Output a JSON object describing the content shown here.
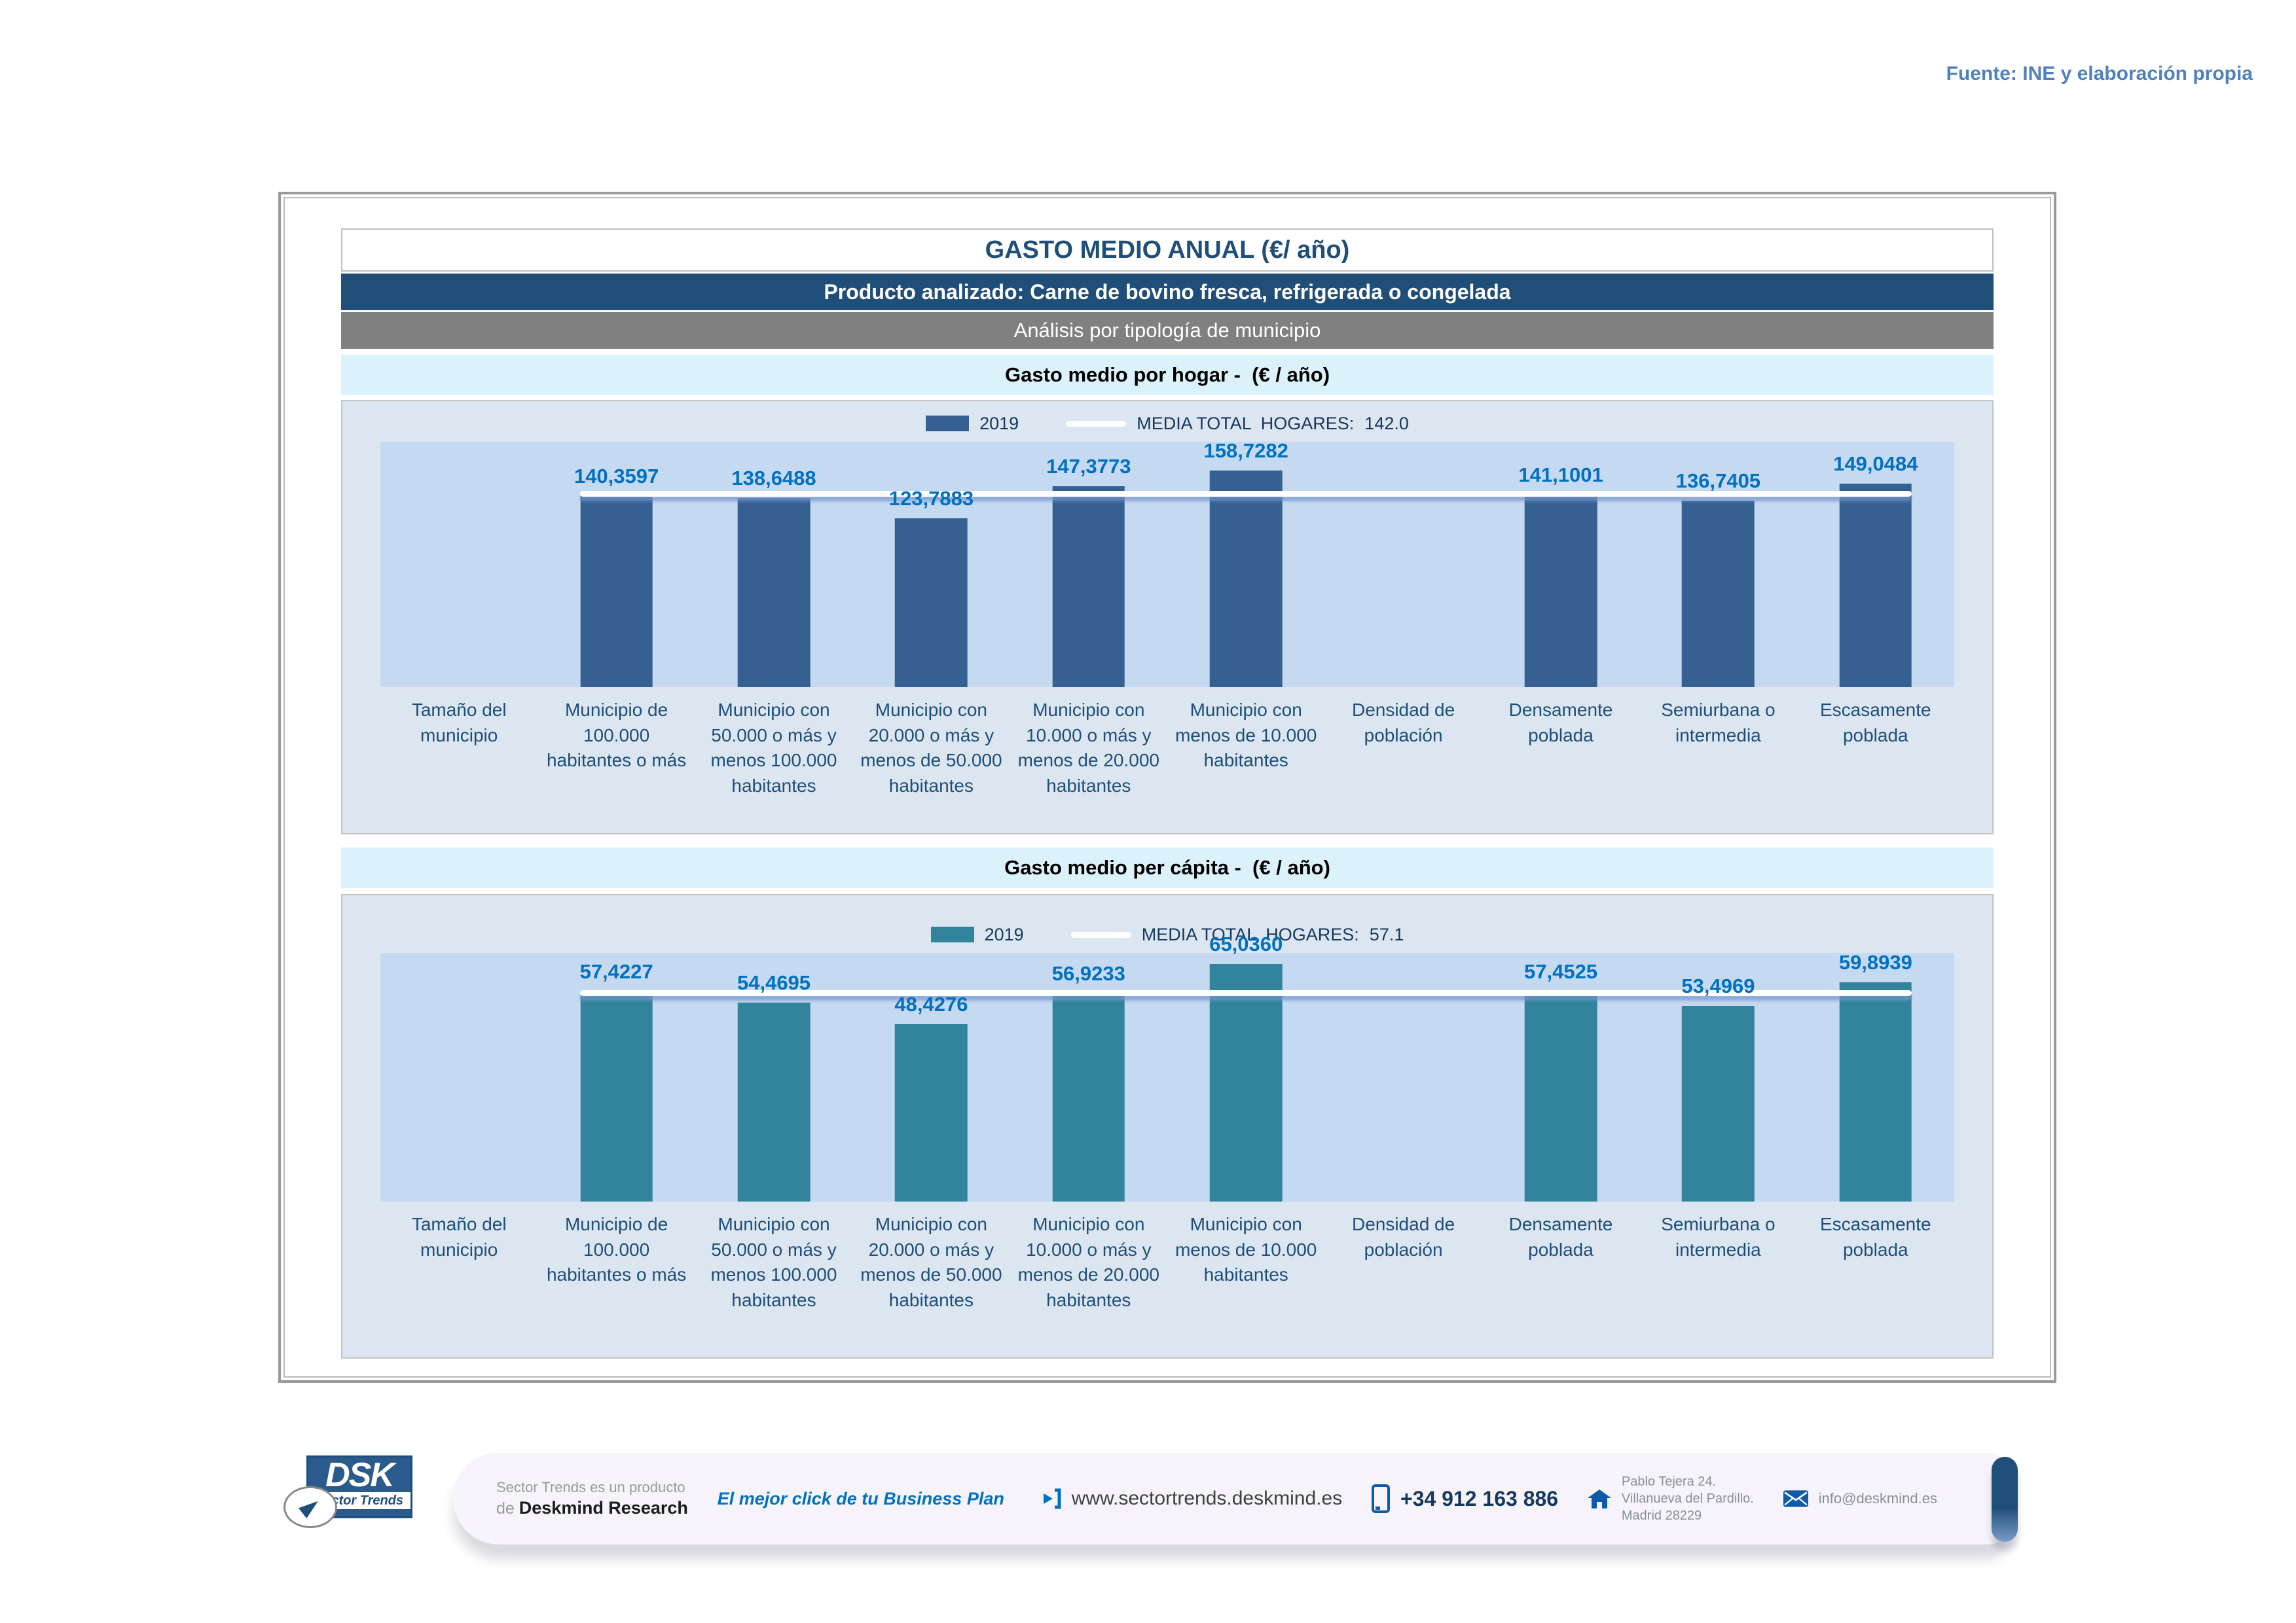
{
  "header": {
    "source_note": "Fuente: INE y elaboración propia",
    "title": "GASTO MEDIO ANUAL (€/ año)",
    "product": "Producto analizado: Carne de bovino fresca, refrigerada o congelada",
    "analysis": "Análisis por tipología de municipio"
  },
  "colors": {
    "banner_navy": "#1F4E79",
    "banner_gray": "#808080",
    "band_cyan": "#DCF2FA",
    "chart_background": "#DCE6F1",
    "plot_background": "#C5D9F1",
    "bar_household": "#366092",
    "bar_per_capita": "#31849B",
    "value_label": "#0070C0",
    "mean_line": "#FFFFFF",
    "source_note": "#4F81BD"
  },
  "chart_data": [
    {
      "type": "bar",
      "title": "Gasto medio por hogar -  (€ / año)",
      "series_name": "2019",
      "mean_line": {
        "label": "MEDIA TOTAL  HOGARES:",
        "value": 142.0,
        "display": "142.0"
      },
      "categories": [
        "Tamaño del municipio",
        "Municipio de 100.000 habitantes o más",
        "Municipio con 50.000 o más y menos 100.000 habitantes",
        "Municipio con 20.000 o más y menos de 50.000 habitantes",
        "Municipio con 10.000 o más y menos de 20.000 habitantes",
        "Municipio con menos de 10.000 habitantes",
        "Densidad de población",
        "Densamente poblada",
        "Semiurbana o intermedia",
        "Escasamente poblada"
      ],
      "values": [
        null,
        140.3597,
        138.6488,
        123.7883,
        147.3773,
        158.7282,
        null,
        141.1001,
        136.7405,
        149.0484
      ],
      "value_labels": [
        null,
        "140,3597",
        "138,6488",
        "123,7883",
        "147,3773",
        "158,7282",
        null,
        "141,1001",
        "136,7405",
        "149,0484"
      ],
      "ylim": [
        0,
        180
      ],
      "bar_color": "#366092",
      "grid": false,
      "legend_position": "top-center"
    },
    {
      "type": "bar",
      "title": "Gasto medio per cápita -  (€ / año)",
      "series_name": "2019",
      "mean_line": {
        "label": "MEDIA TOTAL  HOGARES:",
        "value": 57.1,
        "display": "57.1"
      },
      "categories": [
        "Tamaño del municipio",
        "Municipio de 100.000 habitantes o más",
        "Municipio con 50.000 o más y menos 100.000 habitantes",
        "Municipio con 20.000 o más y menos de 50.000 habitantes",
        "Municipio con 10.000 o más y menos de 20.000 habitantes",
        "Municipio con menos de 10.000 habitantes",
        "Densidad de población",
        "Densamente poblada",
        "Semiurbana o intermedia",
        "Escasamente poblada"
      ],
      "values": [
        null,
        57.4227,
        54.4695,
        48.4276,
        56.9233,
        65.036,
        null,
        57.4525,
        53.4969,
        59.8939
      ],
      "value_labels": [
        null,
        "57,4227",
        "54,4695",
        "48,4276",
        "56,9233",
        "65,0360",
        null,
        "57,4525",
        "53,4969",
        "59,8939"
      ],
      "ylim": [
        0,
        68
      ],
      "bar_color": "#31849B",
      "grid": false,
      "legend_position": "top-center"
    }
  ],
  "footer": {
    "logo": {
      "acronym": "DSK",
      "tagline": "Sector Trends"
    },
    "product_line1": "Sector Trends es un producto",
    "product_line2_prefix": "de ",
    "product_line2_brand": "Deskmind Research",
    "slogan": "El mejor click de tu Business Plan",
    "website": "www.sectortrends.deskmind.es",
    "phone": "+34 912 163 886",
    "address_line1": "Pablo Tejera 24.",
    "address_line2": "Villanueva del Pardillo.",
    "address_line3": "Madrid 28229",
    "email": "info@deskmind.es"
  }
}
